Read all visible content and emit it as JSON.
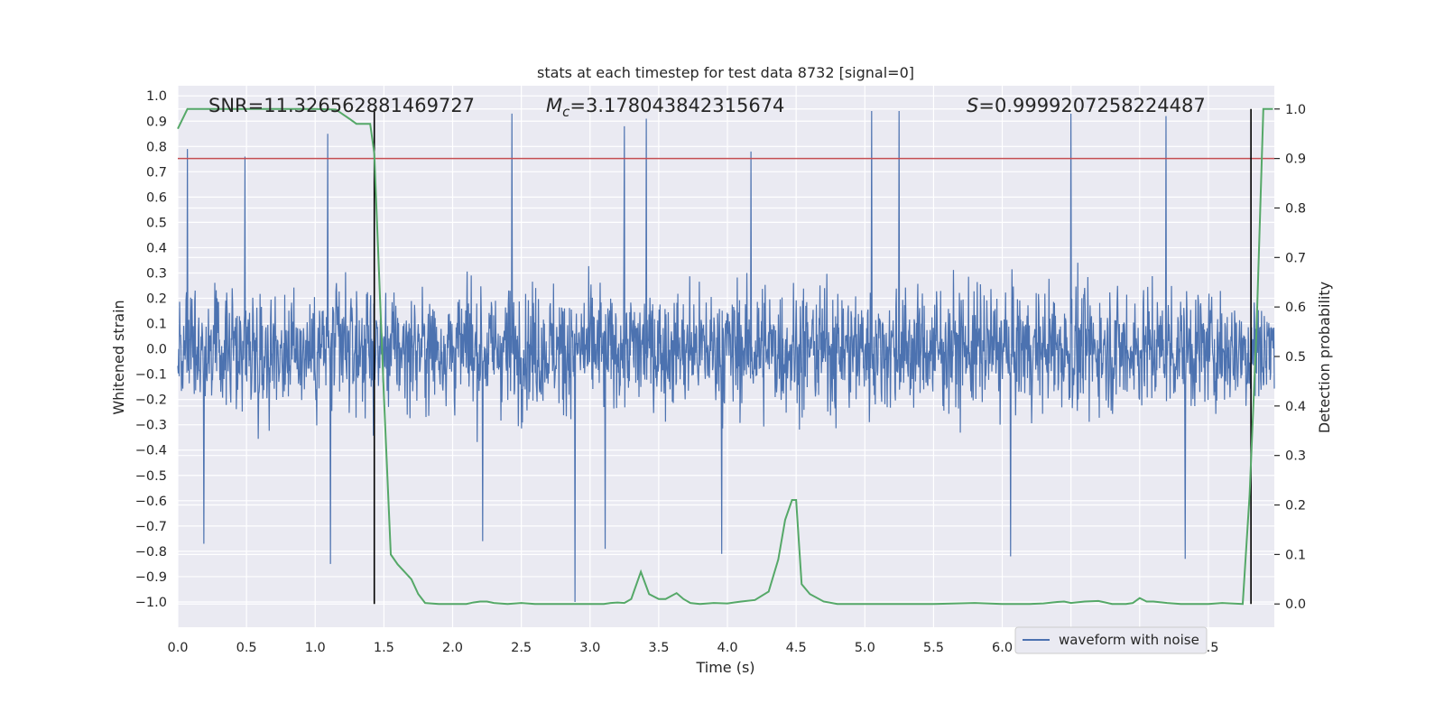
{
  "chart_data": {
    "type": "line",
    "title": "stats at each timestep for test data 8732 [signal=0]",
    "xlabel": "Time (s)",
    "ylabel_left": "Whitened strain",
    "ylabel_right": "Detection probability",
    "xlim": [
      0.0,
      7.98
    ],
    "ylim_left": [
      -1.1,
      1.04
    ],
    "ylim_right": [
      -0.047,
      1.047
    ],
    "x_ticks": [
      "0.0",
      "0.5",
      "1.0",
      "1.5",
      "2.0",
      "2.5",
      "3.0",
      "3.5",
      "4.0",
      "4.5",
      "5.0",
      "5.5",
      "6.0",
      "6.5",
      "7.0",
      "7.5"
    ],
    "y_ticks_left": [
      "1.0",
      "0.9",
      "0.8",
      "0.7",
      "0.6",
      "0.5",
      "0.4",
      "0.3",
      "0.2",
      "0.1",
      "0.0",
      "−0.1",
      "−0.2",
      "−0.3",
      "−0.4",
      "−0.5",
      "−0.6",
      "−0.7",
      "−0.8",
      "−0.9",
      "−1.0"
    ],
    "y_ticks_right": [
      "1.0",
      "0.9",
      "0.8",
      "0.7",
      "0.6",
      "0.5",
      "0.4",
      "0.3",
      "0.2",
      "0.1",
      "0.0"
    ],
    "annotations": {
      "snr": "SNR=11.326562881469727",
      "mc_symbol": "M",
      "mc_sub": "c",
      "mc_value": "=3.178043842315674",
      "s_symbol": "S",
      "s_value": "=0.9999207258224487"
    },
    "legend": {
      "label": "waveform with noise",
      "position": "lower-right"
    },
    "threshold": {
      "value": 0.9,
      "axis": "right"
    },
    "vertical_lines": [
      1.43,
      7.81
    ],
    "waveform": {
      "name": "waveform with noise",
      "duration": 7.98,
      "n_samples": 2400,
      "seed": 8732,
      "typical_range": [
        -0.45,
        0.4
      ],
      "peaks": [
        {
          "x": 0.07,
          "y": 0.79
        },
        {
          "x": 0.49,
          "y": 0.76
        },
        {
          "x": 1.09,
          "y": 0.85
        },
        {
          "x": 2.43,
          "y": 0.93
        },
        {
          "x": 3.25,
          "y": 0.88
        },
        {
          "x": 3.41,
          "y": 0.91
        },
        {
          "x": 4.17,
          "y": 0.78
        },
        {
          "x": 5.05,
          "y": 0.94
        },
        {
          "x": 5.25,
          "y": 0.94
        },
        {
          "x": 6.5,
          "y": 0.93
        },
        {
          "x": 7.19,
          "y": 0.92
        }
      ],
      "troughs": [
        {
          "x": 0.19,
          "y": -0.77
        },
        {
          "x": 1.11,
          "y": -0.85
        },
        {
          "x": 2.22,
          "y": -0.76
        },
        {
          "x": 2.89,
          "y": -1.0
        },
        {
          "x": 3.11,
          "y": -0.79
        },
        {
          "x": 3.96,
          "y": -0.81
        },
        {
          "x": 6.06,
          "y": -0.82
        },
        {
          "x": 7.33,
          "y": -0.83
        }
      ],
      "color": "#4c72b0"
    },
    "detection_probability": {
      "color": "#55a868",
      "x": [
        0.0,
        0.07,
        0.2,
        0.5,
        0.8,
        1.0,
        1.15,
        1.25,
        1.3,
        1.35,
        1.4,
        1.43,
        1.5,
        1.55,
        1.6,
        1.7,
        1.75,
        1.8,
        1.9,
        2.0,
        2.1,
        2.15,
        2.2,
        2.25,
        2.3,
        2.4,
        2.5,
        2.6,
        2.7,
        2.8,
        2.9,
        3.0,
        3.1,
        3.15,
        3.2,
        3.25,
        3.3,
        3.37,
        3.43,
        3.5,
        3.55,
        3.63,
        3.68,
        3.73,
        3.8,
        3.9,
        4.0,
        4.1,
        4.2,
        4.3,
        4.37,
        4.42,
        4.47,
        4.5,
        4.54,
        4.6,
        4.7,
        4.8,
        5.0,
        5.5,
        5.8,
        6.0,
        6.2,
        6.3,
        6.4,
        6.45,
        6.5,
        6.6,
        6.7,
        6.8,
        6.9,
        6.95,
        7.0,
        7.05,
        7.1,
        7.2,
        7.3,
        7.5,
        7.6,
        7.75,
        7.8,
        7.85,
        7.9,
        7.97
      ],
      "y": [
        0.96,
        1.0,
        1.0,
        1.0,
        1.0,
        1.0,
        0.999,
        0.98,
        0.97,
        0.97,
        0.97,
        0.91,
        0.42,
        0.1,
        0.08,
        0.05,
        0.02,
        0.002,
        0.0,
        0.0,
        0.0,
        0.003,
        0.005,
        0.005,
        0.002,
        0.0,
        0.002,
        0.0,
        0.0,
        0.0,
        0.0,
        0.0,
        0.0,
        0.002,
        0.003,
        0.002,
        0.01,
        0.065,
        0.02,
        0.01,
        0.01,
        0.022,
        0.01,
        0.002,
        0.0,
        0.002,
        0.001,
        0.005,
        0.008,
        0.025,
        0.09,
        0.17,
        0.21,
        0.21,
        0.04,
        0.02,
        0.005,
        0.0,
        0.0,
        0.0,
        0.002,
        0.0,
        0.0,
        0.001,
        0.004,
        0.005,
        0.002,
        0.005,
        0.006,
        0.0,
        0.0,
        0.002,
        0.012,
        0.005,
        0.005,
        0.002,
        0.0,
        0.0,
        0.002,
        0.0,
        0.22,
        0.55,
        1.0,
        1.0
      ]
    }
  }
}
